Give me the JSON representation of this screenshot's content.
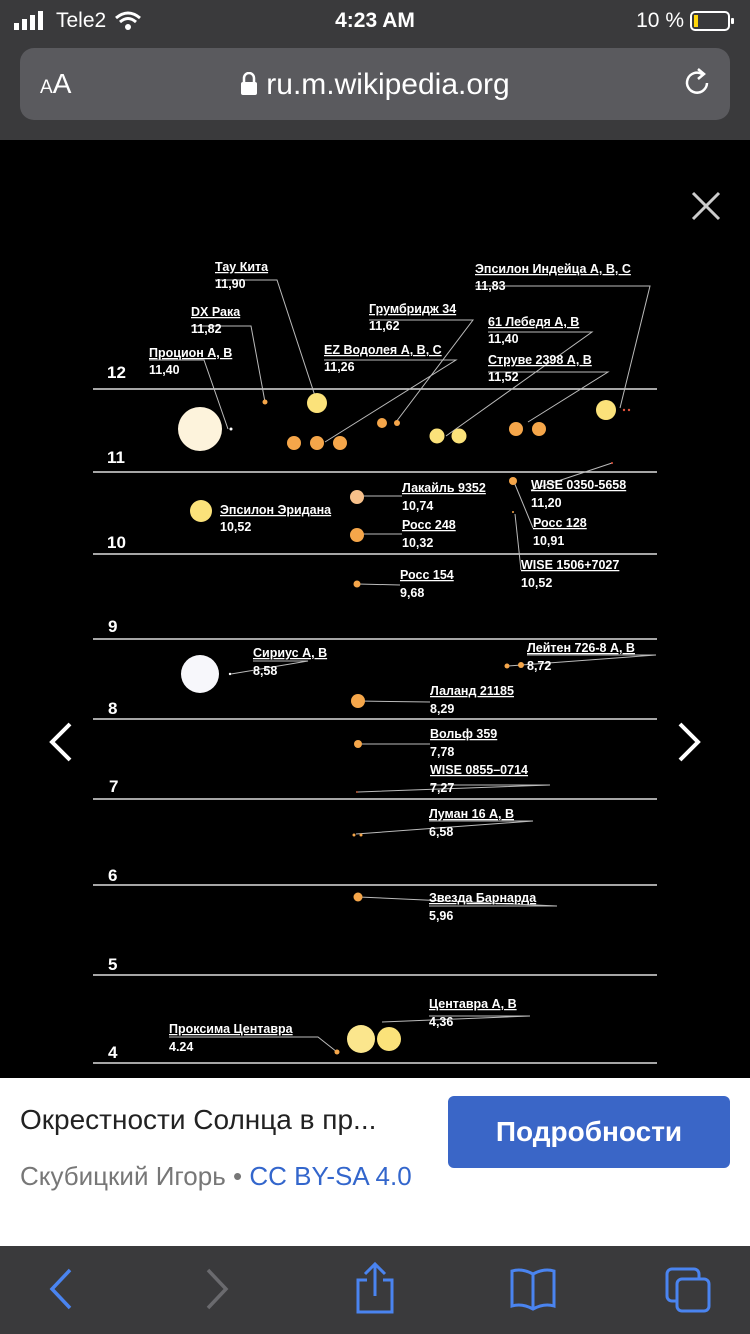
{
  "status": {
    "carrier": "Tele2",
    "time": "4:23 AM",
    "battery": "10 %"
  },
  "browser": {
    "aa_small": "A",
    "aa_large": "A",
    "url": "ru.m.wikipedia.org"
  },
  "chart": {
    "axis_labels": [
      "12",
      "11",
      "10",
      "9",
      "8",
      "7",
      "6",
      "5",
      "4"
    ],
    "stars": [
      {
        "name": "Тау Кита",
        "dist": "11,90"
      },
      {
        "name": "DX Рака",
        "dist": "11,82"
      },
      {
        "name": "Процион А, В",
        "dist": "11,40"
      },
      {
        "name": "Грумбридж 34",
        "dist": "11,62"
      },
      {
        "name": "EZ Водолея А, В, С",
        "dist": "11,26"
      },
      {
        "name": "Эпсилон Индейца A, B, C",
        "dist": "11,83"
      },
      {
        "name": "61 Лебедя А, В",
        "dist": "11,40"
      },
      {
        "name": "Струве 2398 А, В",
        "dist": "11,52"
      },
      {
        "name": "Лакайль 9352",
        "dist": "10,74"
      },
      {
        "name": "WISE 0350-5658",
        "dist": "11,20"
      },
      {
        "name": "Эпсилон Эридана",
        "dist": "10,52"
      },
      {
        "name": "Росс 248",
        "dist": "10,32"
      },
      {
        "name": "Росс 128",
        "dist": "10,91"
      },
      {
        "name": "WISE 1506+7027",
        "dist": "10,52"
      },
      {
        "name": "Росс 154",
        "dist": "9,68"
      },
      {
        "name": "Сириус А, В",
        "dist": "8,58"
      },
      {
        "name": "Лейтен 726-8 А, В",
        "dist": "8,72"
      },
      {
        "name": "Лаланд 21185",
        "dist": "8,29"
      },
      {
        "name": "Вольф 359",
        "dist": "7,78"
      },
      {
        "name": "WISE 0855–0714",
        "dist": "7,27"
      },
      {
        "name": "Луман 16  А, В",
        "dist": "6,58"
      },
      {
        "name": "Звезда Барнарда",
        "dist": "5,96"
      },
      {
        "name": "Центавра А, В",
        "dist": "4,36"
      },
      {
        "name": "Проксима Центавра",
        "dist": "4.24"
      }
    ]
  },
  "caption": {
    "title": "Окрестности Солнца в пр...",
    "author": "Скубицкий Игорь •",
    "license": "CC BY-SA 4.0",
    "more_label": "Подробности"
  }
}
